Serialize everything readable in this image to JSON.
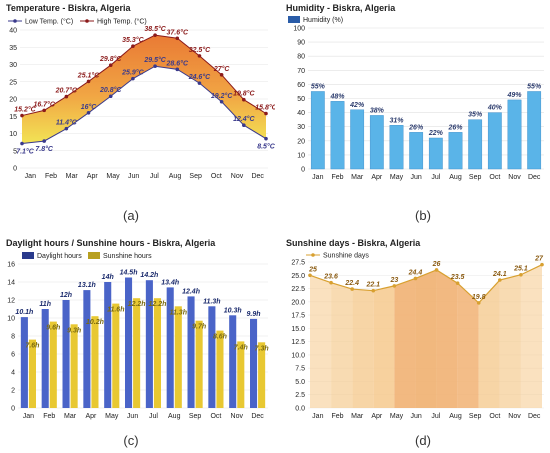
{
  "captions": [
    "(a)",
    "(b)",
    "(c)",
    "(d)"
  ],
  "chart_data": [
    {
      "type": "area",
      "title": "Temperature - Biskra, Algeria",
      "categories": [
        "Jan",
        "Feb",
        "Mar",
        "Apr",
        "May",
        "Jun",
        "Jul",
        "Aug",
        "Sep",
        "Oct",
        "Nov",
        "Dec"
      ],
      "series": [
        {
          "name": "Low Temp. (°C)",
          "values": [
            7.1,
            7.8,
            11.4,
            16,
            20.8,
            25.9,
            29.5,
            28.6,
            24.6,
            19.2,
            12.4,
            8.5
          ],
          "labels": [
            "7.1°C",
            "7.8°C",
            "11.4°C",
            "16°C",
            "20.8°C",
            "25.9°C",
            "29.5°C",
            "28.6°C",
            "24.6°C",
            "19.2°C",
            "12.4°C",
            "8.5°C"
          ]
        },
        {
          "name": "High Temp. (°C)",
          "values": [
            15.2,
            16.7,
            20.7,
            25.1,
            29.8,
            35.3,
            38.5,
            37.6,
            32.5,
            27,
            19.8,
            15.8
          ],
          "labels": [
            "15.2°C",
            "16.7°C",
            "20.7°C",
            "25.1°C",
            "29.8°C",
            "35.3°C",
            "38.5°C",
            "37.6°C",
            "32.5°C",
            "27°C",
            "19.8°C",
            "15.8°C"
          ]
        }
      ],
      "yticks": [
        "0",
        "5",
        "10",
        "15",
        "20",
        "25",
        "30",
        "35",
        "40"
      ],
      "ylim": [
        0,
        40
      ],
      "colors": {
        "low": "#3a3a8c",
        "high": "#8b1a1a",
        "fill_cool": "#f2e24c",
        "fill_warm": "#e8732a"
      }
    },
    {
      "type": "bar",
      "title": "Humidity - Biskra, Algeria",
      "categories": [
        "Jan",
        "Feb",
        "Mar",
        "Apr",
        "May",
        "Jun",
        "Jul",
        "Aug",
        "Sep",
        "Oct",
        "Nov",
        "Dec"
      ],
      "series": [
        {
          "name": "Humidity (%)",
          "values": [
            55,
            48,
            42,
            38,
            31,
            26,
            22,
            26,
            35,
            40,
            49,
            55
          ],
          "labels": [
            "55%",
            "48%",
            "42%",
            "38%",
            "31%",
            "26%",
            "22%",
            "26%",
            "35%",
            "40%",
            "49%",
            "55%"
          ]
        }
      ],
      "yticks": [
        "0",
        "10",
        "20",
        "30",
        "40",
        "50",
        "60",
        "70",
        "80",
        "90",
        "100"
      ],
      "ylim": [
        0,
        100
      ],
      "colors": {
        "bar": "#5ab4e8",
        "legend": "#2a5ca8"
      }
    },
    {
      "type": "bar",
      "title": "Daylight hours / Sunshine hours - Biskra, Algeria",
      "categories": [
        "Jan",
        "Feb",
        "Mar",
        "Apr",
        "May",
        "Jun",
        "Jul",
        "Aug",
        "Sep",
        "Oct",
        "Nov",
        "Dec"
      ],
      "series": [
        {
          "name": "Daylight hours",
          "values": [
            10.1,
            11,
            12,
            13.1,
            14,
            14.5,
            14.2,
            13.4,
            12.4,
            11.3,
            10.3,
            9.9
          ],
          "labels": [
            "10.1h",
            "11h",
            "12h",
            "13.1h",
            "14h",
            "14.5h",
            "14.2h",
            "13.4h",
            "12.4h",
            "11.3h",
            "10.3h",
            "9.9h"
          ]
        },
        {
          "name": "Sunshine hours",
          "values": [
            7.6,
            9.6,
            9.3,
            10.2,
            11.6,
            12.2,
            12.2,
            11.3,
            9.7,
            8.6,
            7.4,
            7.3
          ],
          "labels": [
            "7.6h",
            "9.6h",
            "9.3h",
            "10.2h",
            "11.6h",
            "12.2h",
            "12.2h",
            "11.3h",
            "9.7h",
            "8.6h",
            "7.4h",
            "7.3h"
          ]
        }
      ],
      "yticks": [
        "0",
        "2",
        "4",
        "6",
        "8",
        "10",
        "12",
        "14",
        "16"
      ],
      "ylim": [
        0,
        16
      ],
      "colors": {
        "daylight": "#4a64c8",
        "sunshine": "#e8c832",
        "daylight_legend": "#2a3a8c",
        "sunshine_legend": "#b8a020"
      }
    },
    {
      "type": "area",
      "title": "Sunshine days - Biskra, Algeria",
      "categories": [
        "Jan",
        "Feb",
        "Mar",
        "Apr",
        "May",
        "Jun",
        "Jul",
        "Aug",
        "Sep",
        "Oct",
        "Nov",
        "Dec"
      ],
      "series": [
        {
          "name": "Sunshine days",
          "values": [
            25,
            23.6,
            22.4,
            22.1,
            23,
            24.4,
            26,
            23.5,
            19.8,
            24.1,
            25.1,
            27
          ],
          "labels": [
            "25",
            "23.6",
            "22.4",
            "22.1",
            "23",
            "24.4",
            "26",
            "23.5",
            "19.8",
            "24.1",
            "25.1",
            "27"
          ]
        }
      ],
      "yticks": [
        "0.0",
        "2.5",
        "5.0",
        "7.5",
        "10.0",
        "12.5",
        "15.0",
        "17.5",
        "20.0",
        "22.5",
        "25.0",
        "27.5"
      ],
      "ylim": [
        0,
        27.5
      ],
      "colors": {
        "fill": "#f5c88a",
        "line": "#d8a030"
      }
    }
  ]
}
